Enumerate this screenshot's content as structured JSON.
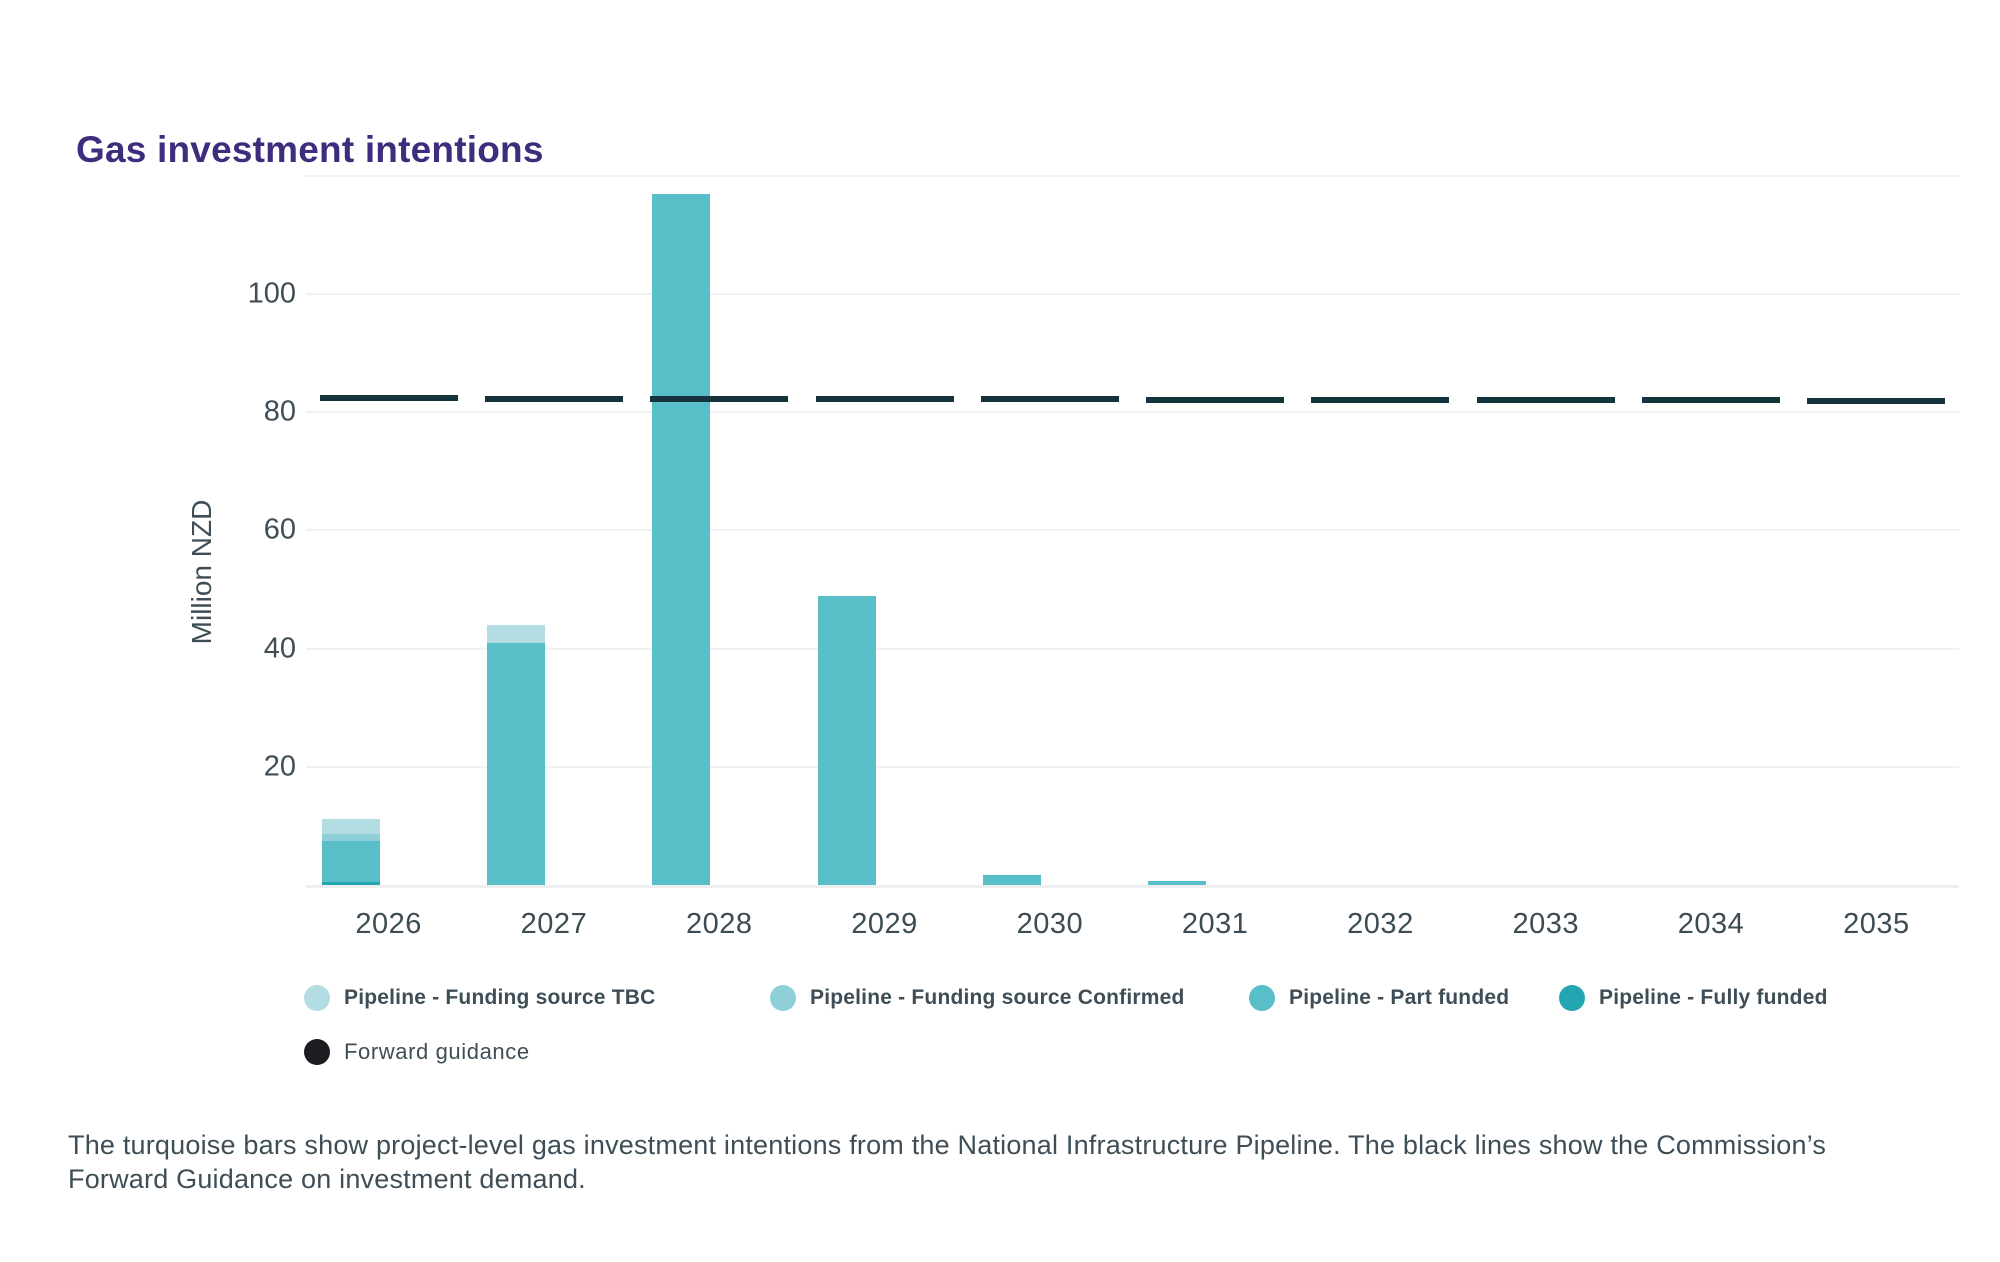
{
  "title": "Gas investment intentions",
  "colors": {
    "title": "#3e2d7d",
    "text": "#3f4e56",
    "grid": "#eff1f2",
    "axis_line": "#eceeef",
    "tbc": "#b3dde2",
    "confirmed": "#8fd0d8",
    "part": "#58bec7",
    "fully": "#23a6b1",
    "guidance_line": "#14333b",
    "guidance_dot": "#1b1d20"
  },
  "chart_data": {
    "type": "bar",
    "subtype": "stacked-with-guidance-dashes",
    "title": "Gas investment intentions",
    "xlabel": "",
    "ylabel": "Million NZD",
    "ylim": [
      0,
      128
    ],
    "yticks": [
      20,
      40,
      60,
      80,
      100
    ],
    "gridlines": [
      20,
      40,
      60,
      80,
      100,
      120
    ],
    "grid": "horizontal",
    "legend_position": "bottom",
    "categories": [
      "2026",
      "2027",
      "2028",
      "2029",
      "2030",
      "2031",
      "2032",
      "2033",
      "2034",
      "2035"
    ],
    "stack_order": [
      "fully",
      "part",
      "confirmed",
      "tbc"
    ],
    "series": [
      {
        "key": "tbc",
        "name": "Pipeline - Funding source TBC",
        "color_key": "tbc",
        "values": [
          2.5,
          3.0,
          0,
          0,
          0,
          0,
          0,
          0,
          0,
          0
        ]
      },
      {
        "key": "confirmed",
        "name": "Pipeline - Funding source Confirmed",
        "color_key": "confirmed",
        "values": [
          1.2,
          0,
          0,
          0,
          0,
          0,
          0,
          0,
          0,
          0
        ]
      },
      {
        "key": "part",
        "name": "Pipeline - Part funded",
        "color_key": "part",
        "values": [
          7.0,
          41.0,
          117.0,
          48.9,
          1.7,
          0.7,
          0,
          0,
          0,
          0
        ]
      },
      {
        "key": "fully",
        "name": "Pipeline - Fully funded",
        "color_key": "fully",
        "values": [
          0.5,
          0,
          0,
          0,
          0,
          0,
          0,
          0,
          0,
          0
        ]
      },
      {
        "key": "guidance",
        "name": "Forward guidance",
        "render_as": "dash",
        "color_key": "guidance_line",
        "values": [
          82.4,
          82.3,
          82.3,
          82.2,
          82.2,
          82.1,
          82.1,
          82.0,
          82.0,
          81.9
        ]
      }
    ]
  },
  "legend": {
    "row1": [
      {
        "label": "Pipeline - Funding source TBC",
        "color_key": "tbc"
      },
      {
        "label": "Pipeline - Funding source Confirmed",
        "color_key": "confirmed"
      },
      {
        "label": "Pipeline - Part funded",
        "color_key": "part"
      },
      {
        "label": "Pipeline - Fully funded",
        "color_key": "fully"
      }
    ],
    "row2": [
      {
        "label": "Forward guidance",
        "color_key": "guidance_dot"
      }
    ]
  },
  "caption": {
    "line1": "The turquoise bars show project-level gas investment intentions from the National Infrastructure Pipeline. The black lines show the Commission’s",
    "line2": "Forward Guidance on investment demand."
  }
}
